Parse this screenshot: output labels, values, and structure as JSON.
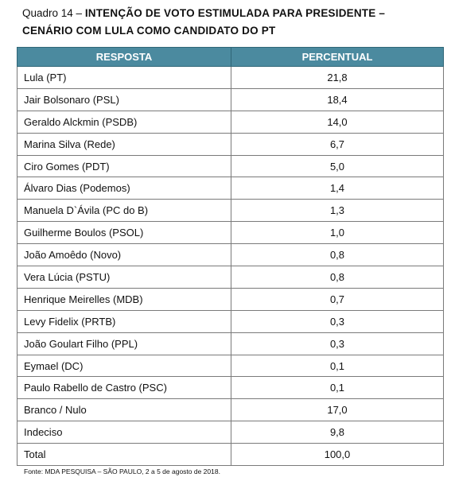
{
  "caption": {
    "prefix": "Quadro 14 –",
    "title_line1": "INTENÇÃO DE VOTO ESTIMULADA PARA PRESIDENTE –",
    "title_line2": "CENÁRIO COM LULA COMO CANDIDATO DO PT"
  },
  "table": {
    "headers": [
      "RESPOSTA",
      "PERCENTUAL"
    ],
    "rows": [
      {
        "label": "Lula (PT)",
        "value": "21,8"
      },
      {
        "label": "Jair Bolsonaro (PSL)",
        "value": "18,4"
      },
      {
        "label": "Geraldo Alckmin (PSDB)",
        "value": "14,0"
      },
      {
        "label": "Marina Silva (Rede)",
        "value": "6,7"
      },
      {
        "label": "Ciro Gomes (PDT)",
        "value": "5,0"
      },
      {
        "label": "Álvaro Dias (Podemos)",
        "value": "1,4"
      },
      {
        "label": "Manuela D`Ávila (PC do B)",
        "value": "1,3"
      },
      {
        "label": "Guilherme Boulos (PSOL)",
        "value": "1,0"
      },
      {
        "label": "João Amoêdo (Novo)",
        "value": "0,8"
      },
      {
        "label": "Vera Lúcia (PSTU)",
        "value": "0,8"
      },
      {
        "label": "Henrique Meirelles (MDB)",
        "value": "0,7"
      },
      {
        "label": "Levy Fidelix (PRTB)",
        "value": "0,3"
      },
      {
        "label": "João Goulart Filho (PPL)",
        "value": "0,3"
      },
      {
        "label": "Eymael (DC)",
        "value": "0,1"
      },
      {
        "label": "Paulo Rabello de Castro (PSC)",
        "value": "0,1"
      },
      {
        "label": "Branco / Nulo",
        "value": "17,0"
      },
      {
        "label": "Indeciso",
        "value": "9,8"
      },
      {
        "label": "Total",
        "value": "100,0"
      }
    ]
  },
  "source": "Fonte: MDA PESQUISA – SÃO PAULO, 2 a 5 de agosto de 2018.",
  "colors": {
    "header_bg": "#4b8a9f",
    "header_text": "#ffffff",
    "border": "#7a7a7a"
  }
}
